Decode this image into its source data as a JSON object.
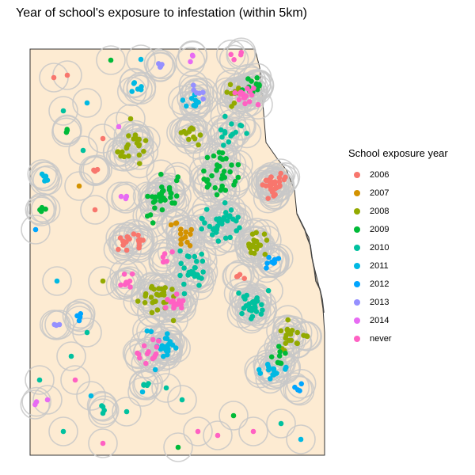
{
  "title": "Year of school's exposure to infestation (within 5km)",
  "legend": {
    "title": "School exposure year",
    "items": [
      {
        "label": "2006",
        "color": "#F8766D"
      },
      {
        "label": "2007",
        "color": "#D39200"
      },
      {
        "label": "2008",
        "color": "#93AA00"
      },
      {
        "label": "2009",
        "color": "#00BA38"
      },
      {
        "label": "2010",
        "color": "#00C19F"
      },
      {
        "label": "2011",
        "color": "#00B9E3"
      },
      {
        "label": "2012",
        "color": "#00A5FF"
      },
      {
        "label": "2013",
        "color": "#9590FF"
      },
      {
        "label": "2014",
        "color": "#E76BF3"
      },
      {
        "label": "never",
        "color": "#FF61C3"
      }
    ]
  },
  "map": {
    "land_color": "#FDEBD2",
    "buffer_color": "#C8C8C8",
    "buffer_radius_km": 5
  }
}
